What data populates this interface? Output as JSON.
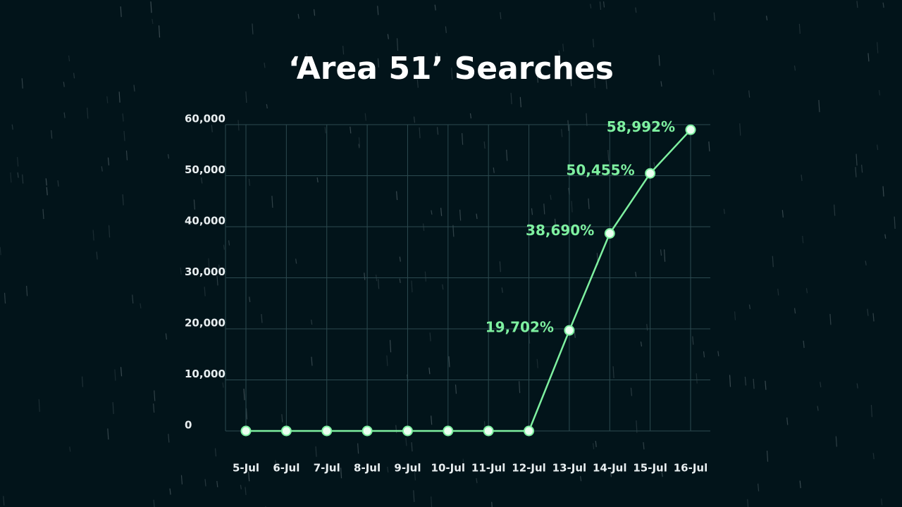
{
  "chart_data": {
    "type": "line",
    "title": "‘Area 51’ Searches",
    "categories": [
      "5-Jul",
      "6-Jul",
      "7-Jul",
      "8-Jul",
      "9-Jul",
      "10-Jul",
      "11-Jul",
      "12-Jul",
      "13-Jul",
      "14-Jul",
      "15-Jul",
      "16-Jul"
    ],
    "values": [
      0,
      0,
      0,
      0,
      0,
      0,
      0,
      0,
      19702,
      38690,
      50455,
      58992
    ],
    "value_labels": [
      null,
      null,
      null,
      null,
      null,
      null,
      null,
      null,
      "19,702%",
      "38,690%",
      "50,455%",
      "58,992%"
    ],
    "color": "#7ef0a0",
    "ylim": [
      0,
      60000
    ],
    "yticks": [
      0,
      {
        "value": 10000,
        "label": "10,000"
      },
      {
        "value": 20000,
        "label": "20,000"
      },
      {
        "value": 30000,
        "label": "30,000"
      },
      {
        "value": 40000,
        "label": "40,000"
      },
      {
        "value": 50000,
        "label": "50,000"
      },
      {
        "value": 60000,
        "label": "60,000"
      }
    ],
    "grid": true
  }
}
